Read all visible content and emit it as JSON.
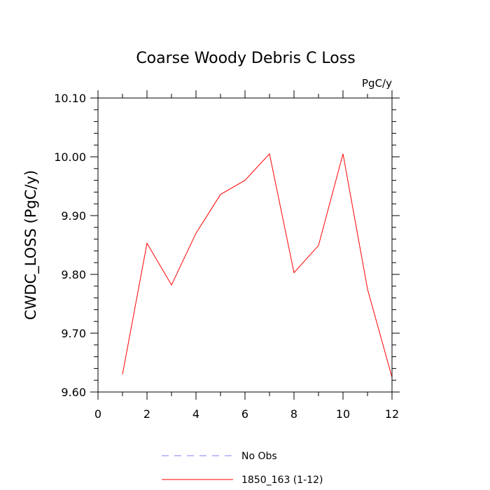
{
  "chart_data": {
    "type": "line",
    "title": "Coarse Woody Debris C Loss",
    "units": "PgC/y",
    "ylabel": "CWDC_LOSS  (PgC/y)",
    "xlabel": "",
    "xlim": [
      0,
      12
    ],
    "ylim": [
      9.6,
      10.1
    ],
    "x_ticks": [
      "0",
      "2",
      "4",
      "6",
      "8",
      "10",
      "12"
    ],
    "y_ticks": [
      "9.60",
      "9.70",
      "9.80",
      "9.90",
      "10.00",
      "10.10"
    ],
    "grid": false,
    "legend_position": "bottom",
    "series": [
      {
        "name": "1850_163 (1-12)",
        "color": "#ff0000",
        "style": "solid",
        "x": [
          1,
          2,
          3,
          4,
          5,
          6,
          7,
          8,
          9,
          10,
          11,
          12
        ],
        "values": [
          9.63,
          9.853,
          9.782,
          9.87,
          9.936,
          9.96,
          10.005,
          9.803,
          9.849,
          10.005,
          9.775,
          9.625
        ]
      }
    ],
    "legend": [
      {
        "label": "No Obs",
        "color": "#8080ff",
        "style": "dashed"
      },
      {
        "label": "1850_163 (1-12)",
        "color": "#ff0000",
        "style": "solid"
      }
    ]
  }
}
